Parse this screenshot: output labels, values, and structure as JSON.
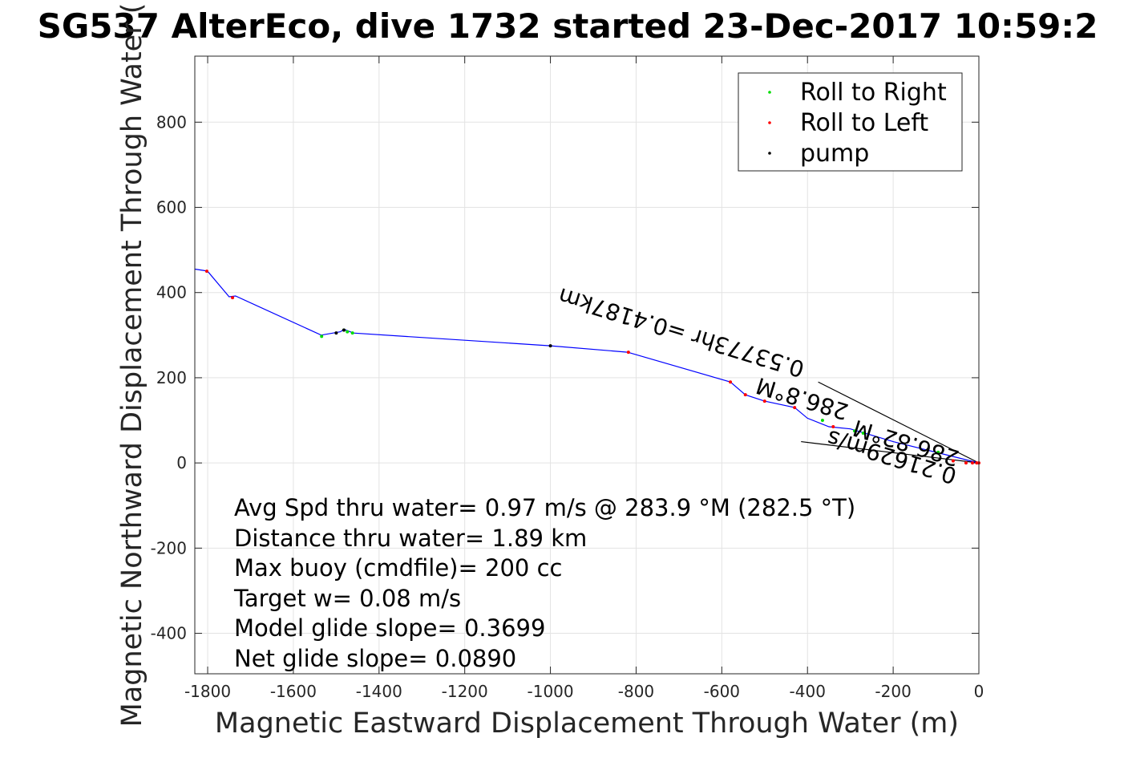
{
  "chart_data": {
    "type": "line",
    "title": "SG537 AlterEco, dive 1732 started 23-Dec-2017 10:59:2",
    "xlabel": "Magnetic Eastward Displacement Through Water (m)",
    "ylabel": "Magnetic Northward Displacement Through Water (",
    "xlim": [
      -1830,
      0
    ],
    "ylim": [
      -495,
      955
    ],
    "xticks": [
      -1800,
      -1600,
      -1400,
      -1200,
      -1000,
      -800,
      -600,
      -400,
      -200,
      0
    ],
    "yticks": [
      -400,
      -200,
      0,
      200,
      400,
      600,
      800
    ],
    "grid": true,
    "legend": {
      "placement": "top-right",
      "entries": [
        {
          "label": "Roll to Right",
          "color": "#00dd00"
        },
        {
          "label": "Roll to Left",
          "color": "#ff0000"
        },
        {
          "label": "pump",
          "color": "#000000"
        }
      ]
    },
    "track": {
      "name": "",
      "color": "#0000ff",
      "x": [
        -1830,
        -1810,
        -1800,
        -1750,
        -1735,
        -1535,
        -1490,
        -1482,
        -1460,
        -1000,
        -820,
        -580,
        -545,
        -500,
        -430,
        -400,
        -350,
        -300,
        -250,
        -200,
        -140,
        -80,
        -20,
        0
      ],
      "y": [
        455,
        452,
        450,
        390,
        392,
        300,
        308,
        314,
        305,
        275,
        260,
        190,
        160,
        145,
        130,
        105,
        85,
        80,
        65,
        50,
        35,
        20,
        5,
        0
      ]
    },
    "roll_right_points": {
      "x": [
        -1534,
        -1482,
        -1474,
        -1462,
        -365,
        -290,
        -270,
        -95
      ],
      "y": [
        297,
        312,
        308,
        305,
        100,
        75,
        70,
        25
      ]
    },
    "roll_left_points": {
      "x": [
        -1802,
        -1742,
        -818,
        -580,
        -545,
        -500,
        -430,
        -340,
        -60,
        -30,
        -15,
        -5,
        0
      ],
      "y": [
        450,
        388,
        260,
        190,
        160,
        145,
        130,
        85,
        5,
        0,
        0,
        0,
        0
      ]
    },
    "pump_points": {
      "x": [
        -1500,
        -1482,
        -1000
      ],
      "y": [
        305,
        312,
        275
      ]
    },
    "current_vectors": [
      {
        "x": [
          -375,
          0
        ],
        "y": [
          190,
          0
        ]
      },
      {
        "x": [
          -415,
          0
        ],
        "y": [
          50,
          0
        ]
      }
    ],
    "segment_labels": [
      "0.53773hr =0.4187km",
      "286.8°M",
      "0.21629m/s",
      "286.82°M"
    ],
    "annotations": [
      "Avg Spd thru water=  0.97 m/s @ 283.9 °M (282.5 °T)",
      "Distance thru water=  1.89 km",
      "Max buoy (cmdfile)= 200 cc",
      "Target w= 0.08 m/s",
      "Model glide slope= 0.3699",
      "Net glide slope= 0.0890"
    ]
  }
}
